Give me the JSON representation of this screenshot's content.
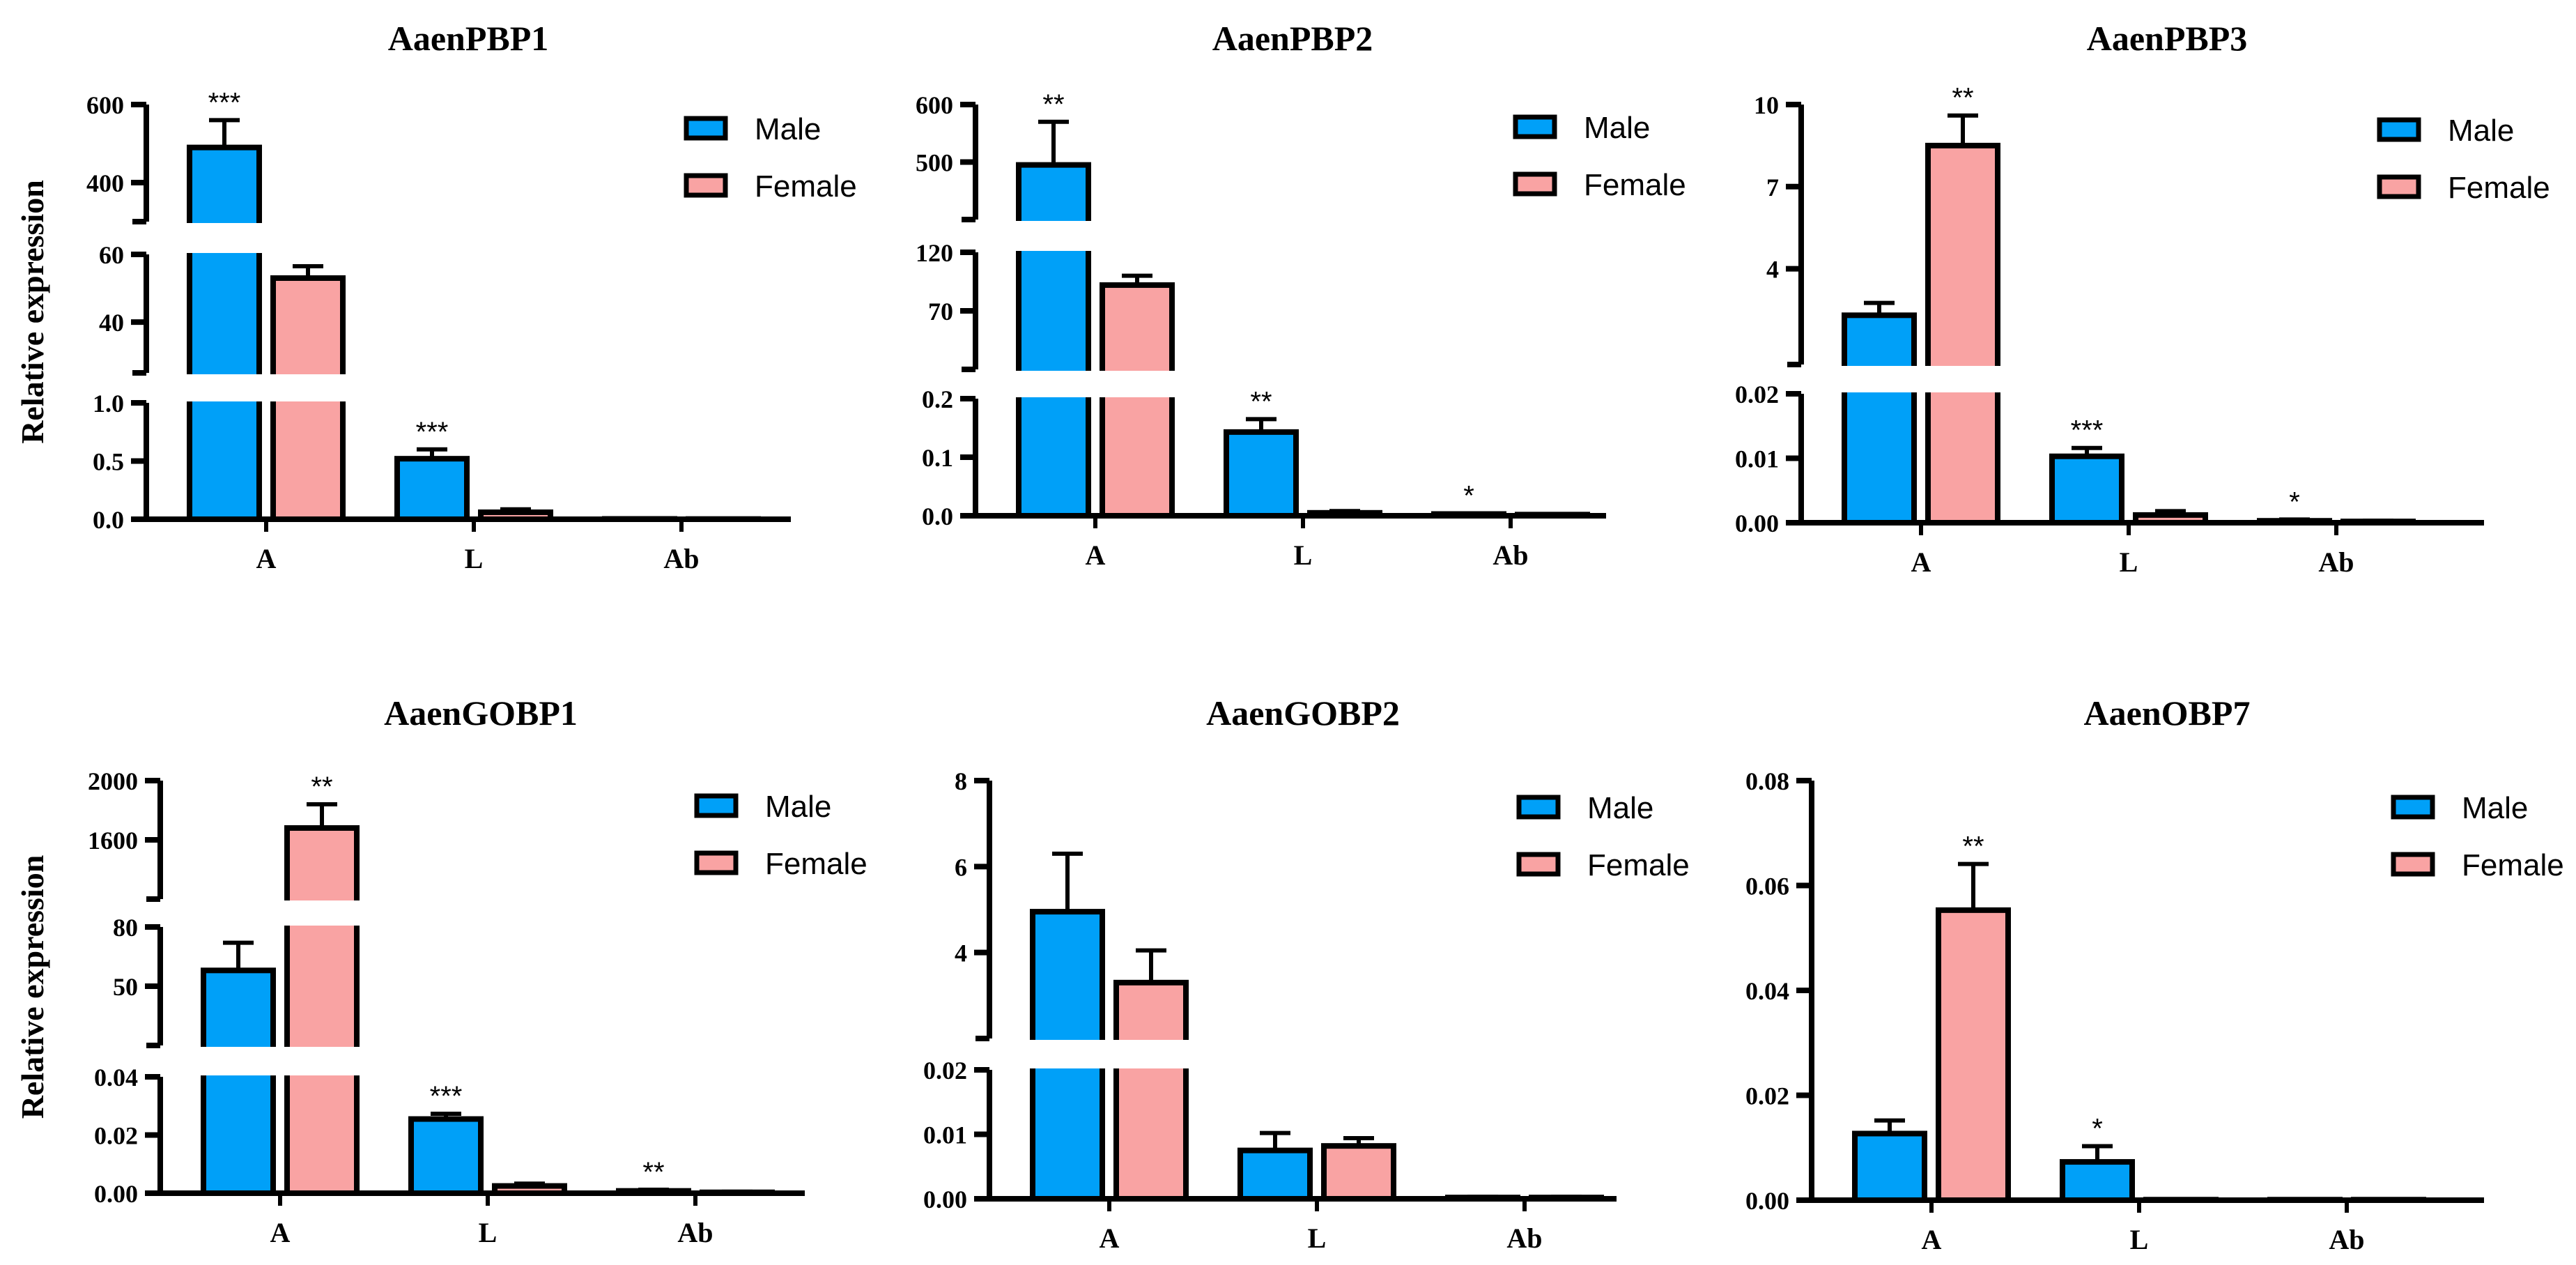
{
  "colors": {
    "male": "#00A0F8",
    "female": "#F9A3A3",
    "axis": "#000000"
  },
  "legend": {
    "male": "Male",
    "female": "Female"
  },
  "chart_data": [
    {
      "type": "bar",
      "title": "AaenPBP1",
      "ylabel": "Relative expression",
      "categories": [
        "A",
        "L",
        "Ab"
      ],
      "series": [
        {
          "name": "Male",
          "values": [
            490,
            0.52,
            0.003
          ],
          "errors": [
            70,
            0.08,
            0.001
          ]
        },
        {
          "name": "Female",
          "values": [
            53,
            0.06,
            0.002
          ],
          "errors": [
            3.5,
            0.025,
            0.001
          ]
        }
      ],
      "y_segments": [
        {
          "range": [
            0,
            1.0
          ],
          "ticks": [
            0.0,
            0.5,
            1.0
          ],
          "labels": [
            "0.0",
            "0.5",
            "1.0"
          ]
        },
        {
          "range": [
            25,
            60
          ],
          "ticks": [
            40,
            60
          ],
          "labels": [
            "40",
            "60"
          ]
        },
        {
          "range": [
            300,
            600
          ],
          "ticks": [
            400,
            600
          ],
          "labels": [
            "400",
            "600"
          ]
        }
      ],
      "significance": [
        {
          "category": "A",
          "series": "Male",
          "label": "***"
        },
        {
          "category": "L",
          "series": "Male",
          "label": "***"
        }
      ]
    },
    {
      "type": "bar",
      "title": "AaenPBP2",
      "ylabel": "",
      "categories": [
        "A",
        "L",
        "Ab"
      ],
      "series": [
        {
          "name": "Male",
          "values": [
            495,
            0.143,
            0.003
          ],
          "errors": [
            75,
            0.022,
            0.001
          ]
        },
        {
          "name": "Female",
          "values": [
            92,
            0.005,
            0.002
          ],
          "errors": [
            8,
            0.003,
            0.001
          ]
        }
      ],
      "y_segments": [
        {
          "range": [
            0,
            0.2
          ],
          "ticks": [
            0.0,
            0.1,
            0.2
          ],
          "labels": [
            "0.0",
            "0.1",
            "0.2"
          ]
        },
        {
          "range": [
            20,
            120
          ],
          "ticks": [
            70,
            120
          ],
          "labels": [
            "70",
            "120"
          ]
        },
        {
          "range": [
            400,
            600
          ],
          "ticks": [
            500,
            600
          ],
          "labels": [
            "500",
            "600"
          ]
        }
      ],
      "significance": [
        {
          "category": "A",
          "series": "Male",
          "label": "**"
        },
        {
          "category": "L",
          "series": "Male",
          "label": "**"
        },
        {
          "category": "Ab",
          "series": "Male",
          "label": "*"
        }
      ]
    },
    {
      "type": "bar",
      "title": "AaenPBP3",
      "ylabel": "",
      "categories": [
        "A",
        "L",
        "Ab"
      ],
      "series": [
        {
          "name": "Male",
          "values": [
            2.3,
            0.0103,
            0.0003
          ],
          "errors": [
            0.45,
            0.0013,
            0.0002
          ]
        },
        {
          "name": "Female",
          "values": [
            8.5,
            0.0012,
            0.0002
          ],
          "errors": [
            1.1,
            0.0006,
            0.0001
          ]
        }
      ],
      "y_segments": [
        {
          "range": [
            0,
            0.02
          ],
          "ticks": [
            0.0,
            0.01,
            0.02
          ],
          "labels": [
            "0.00",
            "0.01",
            "0.02"
          ]
        },
        {
          "range": [
            0.5,
            10
          ],
          "ticks": [
            4,
            7,
            10
          ],
          "labels": [
            "4",
            "7",
            "10"
          ]
        }
      ],
      "significance": [
        {
          "category": "A",
          "series": "Female",
          "label": "**"
        },
        {
          "category": "L",
          "series": "Male",
          "label": "***"
        },
        {
          "category": "Ab",
          "series": "Male",
          "label": "*"
        }
      ]
    },
    {
      "type": "bar",
      "title": "AaenGOBP1",
      "ylabel": "Relative expression",
      "categories": [
        "A",
        "L",
        "Ab"
      ],
      "series": [
        {
          "name": "Male",
          "values": [
            58,
            0.0255,
            0.0008
          ],
          "errors": [
            14,
            0.0018,
            0.0004
          ]
        },
        {
          "name": "Female",
          "values": [
            1680,
            0.0025,
            0.0003
          ],
          "errors": [
            160,
            0.0008,
            0.0002
          ]
        }
      ],
      "y_segments": [
        {
          "range": [
            0,
            0.04
          ],
          "ticks": [
            0.0,
            0.02,
            0.04
          ],
          "labels": [
            "0.00",
            "0.02",
            "0.04"
          ]
        },
        {
          "range": [
            20,
            80
          ],
          "ticks": [
            50,
            80
          ],
          "labels": [
            "50",
            "80"
          ]
        },
        {
          "range": [
            1200,
            2000
          ],
          "ticks": [
            1600,
            2000
          ],
          "labels": [
            "1600",
            "2000"
          ]
        }
      ],
      "significance": [
        {
          "category": "A",
          "series": "Female",
          "label": "**"
        },
        {
          "category": "L",
          "series": "Male",
          "label": "***"
        },
        {
          "category": "Ab",
          "series": "Male",
          "label": "**"
        }
      ]
    },
    {
      "type": "bar",
      "title": "AaenGOBP2",
      "ylabel": "",
      "categories": [
        "A",
        "L",
        "Ab"
      ],
      "series": [
        {
          "name": "Male",
          "values": [
            4.95,
            0.0075,
            0.0002
          ],
          "errors": [
            1.35,
            0.0027,
            0.0001
          ]
        },
        {
          "name": "Female",
          "values": [
            3.3,
            0.0082,
            0.0002
          ],
          "errors": [
            0.75,
            0.0012,
            0.0001
          ]
        }
      ],
      "y_segments": [
        {
          "range": [
            0,
            0.02
          ],
          "ticks": [
            0.0,
            0.01,
            0.02
          ],
          "labels": [
            "0.00",
            "0.01",
            "0.02"
          ]
        },
        {
          "range": [
            2,
            8
          ],
          "ticks": [
            4,
            6,
            8
          ],
          "labels": [
            "4",
            "6",
            "8"
          ]
        }
      ],
      "significance": []
    },
    {
      "type": "bar",
      "title": "AaenOBP7",
      "ylabel": "",
      "categories": [
        "A",
        "L",
        "Ab"
      ],
      "series": [
        {
          "name": "Male",
          "values": [
            0.0127,
            0.0073,
            0.0001
          ],
          "errors": [
            0.0025,
            0.003,
            0.0001
          ]
        },
        {
          "name": "Female",
          "values": [
            0.0553,
            0.0001,
            0.0001
          ],
          "errors": [
            0.0088,
            0.0001,
            0.0001
          ]
        }
      ],
      "y_segments": [
        {
          "range": [
            0,
            0.08
          ],
          "ticks": [
            0.0,
            0.02,
            0.04,
            0.06,
            0.08
          ],
          "labels": [
            "0.00",
            "0.02",
            "0.04",
            "0.06",
            "0.08"
          ]
        }
      ],
      "significance": [
        {
          "category": "A",
          "series": "Female",
          "label": "**"
        },
        {
          "category": "L",
          "series": "Male",
          "label": "*"
        }
      ]
    }
  ]
}
